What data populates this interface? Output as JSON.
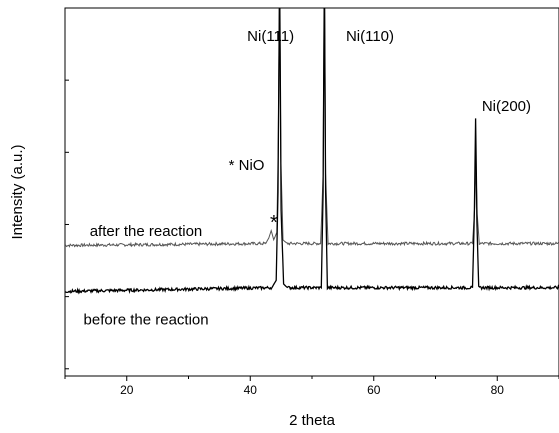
{
  "chart_data": {
    "type": "line",
    "title": "",
    "xlabel": "2 theta",
    "ylabel": "Intensity (a.u.)",
    "xlim": [
      10,
      90
    ],
    "ylim": [
      0,
      10
    ],
    "x_ticks": [
      20,
      40,
      60,
      80
    ],
    "x_tick_labels": [
      "20",
      "40",
      "60",
      "80"
    ],
    "y_tick_labels": [],
    "grid": false,
    "series": [
      {
        "name": "after the reaction",
        "color": "#555555",
        "points": [
          [
            10,
            3.55
          ],
          [
            42.5,
            3.6
          ],
          [
            43.0,
            3.75
          ],
          [
            43.4,
            3.95
          ],
          [
            43.8,
            3.7
          ],
          [
            44.3,
            3.9
          ],
          [
            44.55,
            6.5
          ],
          [
            44.75,
            11.0
          ],
          [
            44.95,
            6.0
          ],
          [
            45.3,
            3.7
          ],
          [
            46,
            3.6
          ],
          [
            51.4,
            3.6
          ],
          [
            51.8,
            5.5
          ],
          [
            52.0,
            11.0
          ],
          [
            52.2,
            5.5
          ],
          [
            52.6,
            3.6
          ],
          [
            76.0,
            3.6
          ],
          [
            76.35,
            4.6
          ],
          [
            76.55,
            5.7
          ],
          [
            76.75,
            4.4
          ],
          [
            77.1,
            3.6
          ],
          [
            90,
            3.6
          ]
        ]
      },
      {
        "name": "before the reaction",
        "color": "#000000",
        "points": [
          [
            10,
            2.3
          ],
          [
            43.5,
            2.4
          ],
          [
            44.2,
            2.6
          ],
          [
            44.5,
            5.0
          ],
          [
            44.75,
            11.0
          ],
          [
            45.0,
            4.5
          ],
          [
            45.4,
            2.5
          ],
          [
            46,
            2.4
          ],
          [
            51.5,
            2.4
          ],
          [
            51.8,
            5.0
          ],
          [
            52.0,
            11.0
          ],
          [
            52.2,
            5.0
          ],
          [
            52.5,
            2.4
          ],
          [
            76.0,
            2.4
          ],
          [
            76.3,
            4.5
          ],
          [
            76.5,
            7.0
          ],
          [
            76.7,
            4.2
          ],
          [
            77.0,
            2.4
          ],
          [
            90,
            2.4
          ]
        ]
      }
    ],
    "annotations": [
      {
        "text": "Ni(111)",
        "x": 39.5,
        "y": 9.1
      },
      {
        "text": "Ni(110)",
        "x": 55.5,
        "y": 9.1
      },
      {
        "text": "Ni(200)",
        "x": 77.5,
        "y": 7.2
      },
      {
        "text": "* NiO",
        "x": 36.5,
        "y": 5.6
      },
      {
        "text": "*",
        "x": 43.2,
        "y": 4.0
      },
      {
        "text": "after the reaction",
        "x": 14,
        "y": 3.8
      },
      {
        "text": "before the reaction",
        "x": 13,
        "y": 1.4
      }
    ]
  }
}
